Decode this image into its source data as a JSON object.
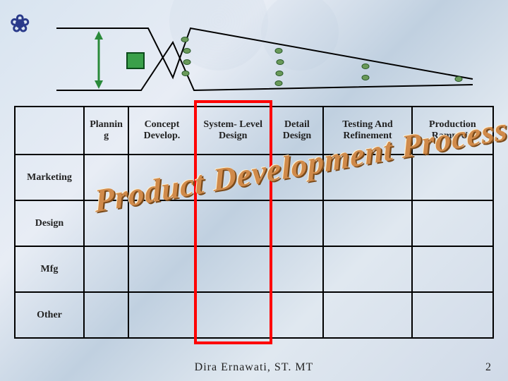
{
  "flower_glyph": "❀",
  "funnel": {
    "stroke": "#000000",
    "stroke_width": 2,
    "arrow_color": "#2a8a3a",
    "box_fill": "#3aa04a",
    "box_stroke": "#0a4a1a",
    "dot_fill": "#6a9a5a",
    "dot_stroke": "#2a5a2a"
  },
  "columns": [
    "Plannin g",
    "Concept Develop.",
    "System- Level Design",
    "Detail Design",
    "Testing And Refinement",
    "Production Ramp-Up"
  ],
  "rows": [
    "Marketing",
    "Design",
    "Mfg",
    "Other"
  ],
  "highlight_column_index": 2,
  "highlight_color": "#ff0000",
  "wordart_text": "Product Development Process",
  "wordart_color": "#d08a4a",
  "footer_text": "Dira Ernawati, ST. MT",
  "page_number": "2",
  "background_gradient": [
    "#d8e4f0",
    "#e8edf5",
    "#c0d0e0",
    "#e0e8f0",
    "#d0dae8"
  ]
}
